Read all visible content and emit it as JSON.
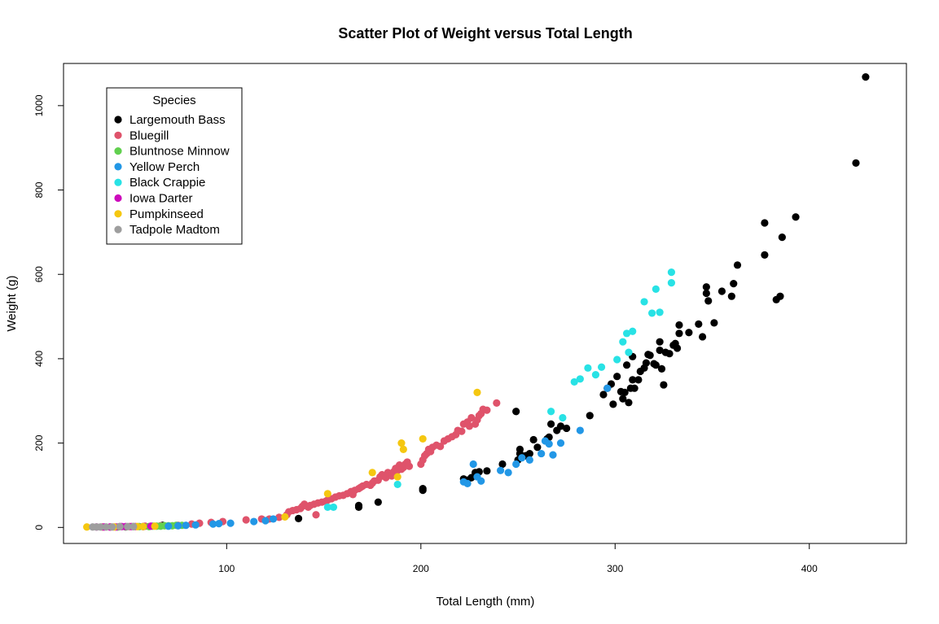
{
  "chart_data": {
    "type": "scatter",
    "title": "Scatter Plot of Weight versus Total Length",
    "xlabel": "Total Length (mm)",
    "ylabel": "Weight (g)",
    "xlim": [
      16,
      450
    ],
    "ylim": [
      -38,
      1100
    ],
    "xticks": [
      100,
      200,
      300,
      400
    ],
    "yticks": [
      0,
      200,
      400,
      600,
      800,
      1000
    ],
    "grid": false,
    "legend": {
      "title": "Species",
      "placement": "top-left"
    },
    "series": [
      {
        "name": "Largemouth Bass",
        "color": "#000000",
        "points": [
          [
            67,
            5
          ],
          [
            137,
            21
          ],
          [
            168,
            48
          ],
          [
            168,
            52
          ],
          [
            178,
            60
          ],
          [
            201,
            88
          ],
          [
            201,
            92
          ],
          [
            222,
            115
          ],
          [
            224,
            112
          ],
          [
            226,
            118
          ],
          [
            228,
            130
          ],
          [
            230,
            132
          ],
          [
            234,
            134
          ],
          [
            242,
            150
          ],
          [
            249,
            275
          ],
          [
            250,
            160
          ],
          [
            251,
            175
          ],
          [
            251,
            185
          ],
          [
            254,
            170
          ],
          [
            256,
            175
          ],
          [
            258,
            208
          ],
          [
            260,
            190
          ],
          [
            265,
            210
          ],
          [
            266,
            214
          ],
          [
            267,
            245
          ],
          [
            270,
            230
          ],
          [
            272,
            240
          ],
          [
            275,
            235
          ],
          [
            287,
            265
          ],
          [
            294,
            315
          ],
          [
            296,
            330
          ],
          [
            298,
            340
          ],
          [
            299,
            292
          ],
          [
            301,
            358
          ],
          [
            303,
            322
          ],
          [
            304,
            305
          ],
          [
            305,
            320
          ],
          [
            306,
            385
          ],
          [
            307,
            296
          ],
          [
            308,
            330
          ],
          [
            309,
            350
          ],
          [
            309,
            405
          ],
          [
            310,
            330
          ],
          [
            312,
            350
          ],
          [
            313,
            370
          ],
          [
            315,
            378
          ],
          [
            316,
            390
          ],
          [
            317,
            410
          ],
          [
            318,
            408
          ],
          [
            320,
            388
          ],
          [
            321,
            385
          ],
          [
            323,
            440
          ],
          [
            323,
            420
          ],
          [
            324,
            376
          ],
          [
            325,
            338
          ],
          [
            326,
            415
          ],
          [
            328,
            412
          ],
          [
            330,
            432
          ],
          [
            331,
            436
          ],
          [
            332,
            425
          ],
          [
            333,
            460
          ],
          [
            333,
            480
          ],
          [
            338,
            462
          ],
          [
            343,
            482
          ],
          [
            345,
            452
          ],
          [
            347,
            555
          ],
          [
            347,
            570
          ],
          [
            348,
            537
          ],
          [
            351,
            485
          ],
          [
            355,
            560
          ],
          [
            360,
            548
          ],
          [
            361,
            578
          ],
          [
            363,
            622
          ],
          [
            377,
            722
          ],
          [
            377,
            646
          ],
          [
            383,
            540
          ],
          [
            385,
            548
          ],
          [
            386,
            688
          ],
          [
            393,
            736
          ],
          [
            424,
            864
          ],
          [
            429,
            1068
          ]
        ]
      },
      {
        "name": "Bluegill",
        "color": "#DF536B",
        "points": [
          [
            36,
            1
          ],
          [
            40,
            1
          ],
          [
            45,
            2
          ],
          [
            50,
            2
          ],
          [
            58,
            3
          ],
          [
            66,
            4
          ],
          [
            75,
            5
          ],
          [
            82,
            8
          ],
          [
            86,
            10
          ],
          [
            92,
            12
          ],
          [
            98,
            14
          ],
          [
            110,
            18
          ],
          [
            118,
            20
          ],
          [
            122,
            20
          ],
          [
            127,
            24
          ],
          [
            131,
            30
          ],
          [
            132,
            37
          ],
          [
            134,
            40
          ],
          [
            136,
            42
          ],
          [
            138,
            45
          ],
          [
            139,
            50
          ],
          [
            140,
            55
          ],
          [
            142,
            48
          ],
          [
            143,
            52
          ],
          [
            145,
            55
          ],
          [
            146,
            30
          ],
          [
            147,
            58
          ],
          [
            149,
            60
          ],
          [
            151,
            62
          ],
          [
            152,
            65
          ],
          [
            154,
            68
          ],
          [
            156,
            72
          ],
          [
            158,
            75
          ],
          [
            160,
            76
          ],
          [
            162,
            80
          ],
          [
            164,
            85
          ],
          [
            165,
            78
          ],
          [
            166,
            88
          ],
          [
            168,
            92
          ],
          [
            169,
            95
          ],
          [
            170,
            98
          ],
          [
            172,
            102
          ],
          [
            174,
            100
          ],
          [
            175,
            105
          ],
          [
            176,
            110
          ],
          [
            178,
            112
          ],
          [
            179,
            120
          ],
          [
            180,
            125
          ],
          [
            182,
            118
          ],
          [
            183,
            130
          ],
          [
            184,
            128
          ],
          [
            185,
            122
          ],
          [
            186,
            132
          ],
          [
            187,
            140
          ],
          [
            188,
            135
          ],
          [
            189,
            148
          ],
          [
            190,
            138
          ],
          [
            191,
            142
          ],
          [
            192,
            150
          ],
          [
            193,
            155
          ],
          [
            194,
            145
          ],
          [
            200,
            150
          ],
          [
            201,
            160
          ],
          [
            202,
            170
          ],
          [
            203,
            175
          ],
          [
            204,
            185
          ],
          [
            205,
            180
          ],
          [
            206,
            190
          ],
          [
            208,
            195
          ],
          [
            210,
            192
          ],
          [
            212,
            205
          ],
          [
            214,
            210
          ],
          [
            216,
            215
          ],
          [
            218,
            220
          ],
          [
            219,
            230
          ],
          [
            221,
            228
          ],
          [
            222,
            245
          ],
          [
            224,
            250
          ],
          [
            225,
            240
          ],
          [
            226,
            260
          ],
          [
            228,
            245
          ],
          [
            229,
            255
          ],
          [
            230,
            265
          ],
          [
            231,
            270
          ],
          [
            232,
            280
          ],
          [
            234,
            278
          ],
          [
            239,
            295
          ]
        ]
      },
      {
        "name": "Bluntnose Minnow",
        "color": "#61D04F",
        "points": [
          [
            44,
            1
          ],
          [
            48,
            1
          ],
          [
            52,
            2
          ],
          [
            55,
            2
          ],
          [
            57,
            2
          ],
          [
            60,
            2
          ],
          [
            62,
            3
          ],
          [
            64,
            3
          ],
          [
            66,
            3
          ],
          [
            68,
            4
          ],
          [
            70,
            4
          ],
          [
            72,
            4
          ],
          [
            74,
            5
          ],
          [
            77,
            5
          ]
        ]
      },
      {
        "name": "Yellow Perch",
        "color": "#2297E6",
        "points": [
          [
            70,
            3
          ],
          [
            75,
            4
          ],
          [
            79,
            5
          ],
          [
            84,
            6
          ],
          [
            93,
            8
          ],
          [
            96,
            9
          ],
          [
            102,
            10
          ],
          [
            114,
            14
          ],
          [
            120,
            16
          ],
          [
            124,
            20
          ],
          [
            222,
            108
          ],
          [
            224,
            104
          ],
          [
            227,
            150
          ],
          [
            229,
            120
          ],
          [
            231,
            110
          ],
          [
            241,
            135
          ],
          [
            245,
            130
          ],
          [
            249,
            150
          ],
          [
            252,
            165
          ],
          [
            256,
            160
          ],
          [
            262,
            175
          ],
          [
            264,
            205
          ],
          [
            266,
            198
          ],
          [
            268,
            172
          ],
          [
            272,
            200
          ],
          [
            282,
            230
          ],
          [
            296,
            330
          ]
        ]
      },
      {
        "name": "Black Crappie",
        "color": "#28E2E5",
        "points": [
          [
            152,
            48
          ],
          [
            155,
            48
          ],
          [
            188,
            102
          ],
          [
            267,
            275
          ],
          [
            273,
            260
          ],
          [
            279,
            345
          ],
          [
            282,
            352
          ],
          [
            286,
            378
          ],
          [
            290,
            362
          ],
          [
            293,
            380
          ],
          [
            301,
            398
          ],
          [
            304,
            440
          ],
          [
            306,
            460
          ],
          [
            307,
            415
          ],
          [
            309,
            465
          ],
          [
            315,
            535
          ],
          [
            319,
            508
          ],
          [
            321,
            565
          ],
          [
            323,
            510
          ],
          [
            329,
            580
          ],
          [
            329,
            605
          ]
        ]
      },
      {
        "name": "Iowa Darter",
        "color": "#CD0BBC",
        "points": [
          [
            33,
            1
          ],
          [
            37,
            1
          ],
          [
            40,
            1
          ],
          [
            43,
            1
          ],
          [
            46,
            2
          ],
          [
            48,
            2
          ],
          [
            51,
            2
          ],
          [
            53,
            2
          ],
          [
            57,
            2
          ],
          [
            61,
            3
          ]
        ]
      },
      {
        "name": "Pumpkinseed",
        "color": "#F5C710",
        "points": [
          [
            28,
            1
          ],
          [
            42,
            1
          ],
          [
            54,
            2
          ],
          [
            57,
            2
          ],
          [
            63,
            3
          ],
          [
            130,
            25
          ],
          [
            152,
            80
          ],
          [
            175,
            130
          ],
          [
            188,
            120
          ],
          [
            190,
            200
          ],
          [
            191,
            185
          ],
          [
            201,
            210
          ],
          [
            229,
            320
          ]
        ]
      },
      {
        "name": "Tadpole Madtom",
        "color": "#9E9E9E",
        "points": [
          [
            31,
            1
          ],
          [
            33,
            1
          ],
          [
            35,
            1
          ],
          [
            38,
            1
          ],
          [
            41,
            1
          ],
          [
            45,
            2
          ],
          [
            49,
            2
          ],
          [
            52,
            2
          ]
        ]
      }
    ]
  }
}
